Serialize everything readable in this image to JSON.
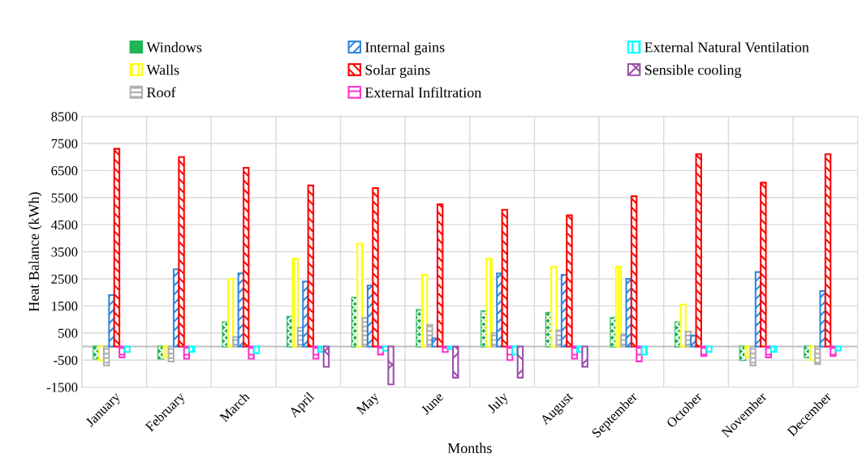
{
  "chart_data": {
    "type": "bar",
    "xlabel": "Months",
    "ylabel": "Heat Balance (kWh)",
    "categories": [
      "January",
      "February",
      "March",
      "April",
      "May",
      "June",
      "July",
      "August",
      "September",
      "October",
      "November",
      "December"
    ],
    "series": [
      {
        "name": "Windows",
        "color": "#1fb454",
        "values": [
          -450,
          -450,
          900,
          1100,
          1800,
          1350,
          1300,
          1250,
          1050,
          900,
          -500,
          -400
        ]
      },
      {
        "name": "Walls",
        "color": "#ffff00",
        "values": [
          -500,
          -400,
          2500,
          3250,
          3800,
          2650,
          3250,
          2950,
          2950,
          1550,
          -400,
          -500
        ]
      },
      {
        "name": "Roof",
        "color": "#b0b0b0",
        "values": [
          -700,
          -550,
          350,
          700,
          1050,
          800,
          500,
          600,
          450,
          550,
          -700,
          -650
        ]
      },
      {
        "name": "Internal gains",
        "color": "#2e86de",
        "values": [
          1900,
          2850,
          2700,
          2400,
          2250,
          300,
          2700,
          2650,
          2500,
          400,
          2750,
          2050
        ]
      },
      {
        "name": "Solar gains",
        "color": "#ff0000",
        "values": [
          7300,
          7000,
          6600,
          5950,
          5850,
          5250,
          5050,
          4850,
          5550,
          7100,
          6050,
          7100
        ]
      },
      {
        "name": "External Infiltration",
        "color": "#ff33cc",
        "values": [
          -400,
          -450,
          -450,
          -450,
          -300,
          -200,
          -500,
          -450,
          -550,
          -350,
          -400,
          -350
        ]
      },
      {
        "name": "External Natural Ventilation",
        "color": "#00ffff",
        "values": [
          -200,
          -200,
          -250,
          -200,
          -150,
          -100,
          -300,
          -200,
          -300,
          -200,
          -200,
          -150
        ]
      },
      {
        "name": "Sensible cooling",
        "color": "#9b4fa8",
        "values": [
          null,
          null,
          null,
          -750,
          -1400,
          -1150,
          -1150,
          -750,
          null,
          null,
          null,
          null
        ]
      }
    ],
    "ylim": [
      -1500,
      8500
    ],
    "yticks": [
      -1500,
      -500,
      500,
      1500,
      2500,
      3500,
      4500,
      5500,
      6500,
      7500,
      8500
    ],
    "grid": true,
    "legend": "top"
  }
}
